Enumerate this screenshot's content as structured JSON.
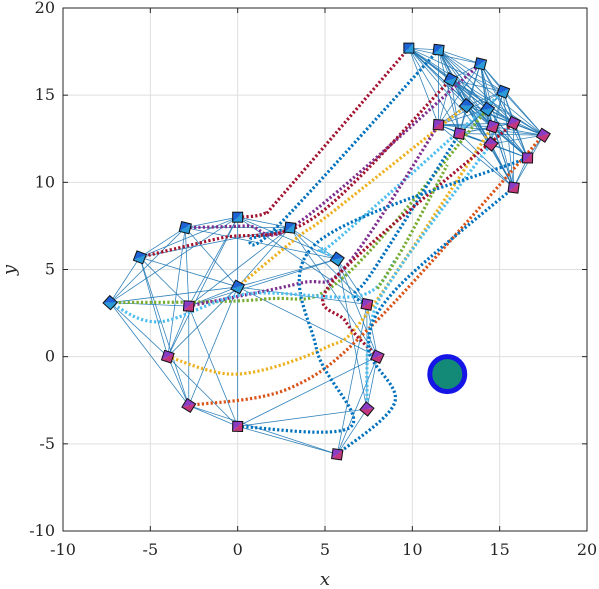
{
  "chart_data": {
    "type": "line",
    "xlabel": "x",
    "ylabel": "y",
    "xlim": [
      -10,
      20
    ],
    "ylim": [
      -10,
      20
    ],
    "xticks": [
      -10,
      -5,
      0,
      5,
      10,
      15,
      20
    ],
    "yticks": [
      -10,
      -5,
      0,
      5,
      10,
      15,
      20
    ],
    "grid": true,
    "obstacle": {
      "center": [
        12,
        -1
      ],
      "radius": 1.0,
      "fill": "#138a78",
      "edge": "#1515e6"
    },
    "start_formation": [
      [
        0,
        8
      ],
      [
        3,
        7.4
      ],
      [
        -3,
        7.4
      ],
      [
        -5.6,
        5.7
      ],
      [
        0,
        4
      ],
      [
        5.7,
        5.6
      ],
      [
        -7.3,
        3.1
      ],
      [
        -2.8,
        2.9
      ],
      [
        7.4,
        3
      ],
      [
        -4,
        0
      ],
      [
        8,
        0
      ],
      [
        -2.8,
        -2.8
      ],
      [
        7.4,
        -3
      ],
      [
        0,
        -4
      ],
      [
        5.7,
        -5.6
      ]
    ],
    "goal_formation": [
      [
        9.8,
        17.7
      ],
      [
        11.5,
        17.6
      ],
      [
        13.9,
        16.8
      ],
      [
        15.2,
        15.2
      ],
      [
        12.2,
        15.9
      ],
      [
        14.3,
        14.2
      ],
      [
        13.1,
        14.4
      ],
      [
        11.5,
        13.3
      ],
      [
        12.7,
        12.8
      ],
      [
        14.6,
        13.2
      ],
      [
        15.8,
        13.4
      ],
      [
        17.5,
        12.7
      ],
      [
        14.5,
        12.2
      ],
      [
        16.6,
        11.4
      ],
      [
        15.8,
        9.7
      ]
    ],
    "series": [
      {
        "color": "#a2142f",
        "points": [
          [
            0,
            8
          ],
          [
            1.5,
            8.2
          ],
          [
            2.5,
            9.2
          ],
          [
            9.8,
            17.7
          ]
        ]
      },
      {
        "color": "#0072bd",
        "points": [
          [
            3,
            7.4
          ],
          [
            0.8,
            6.8
          ],
          [
            2.2,
            7.4
          ],
          [
            11.5,
            17.6
          ]
        ]
      },
      {
        "color": "#7e2f8e",
        "points": [
          [
            -3,
            7.4
          ],
          [
            0.5,
            7.5
          ],
          [
            3.5,
            7.7
          ],
          [
            13.9,
            16.8
          ]
        ]
      },
      {
        "color": "#a2142f",
        "points": [
          [
            -5.6,
            5.7
          ],
          [
            -1,
            6.8
          ],
          [
            4.4,
            8.0
          ],
          [
            12.2,
            15.9
          ]
        ]
      },
      {
        "color": "#edb120",
        "points": [
          [
            0,
            4
          ],
          [
            3.5,
            6.9
          ],
          [
            5.3,
            8.2
          ],
          [
            13.1,
            14.4
          ]
        ]
      },
      {
        "color": "#4dbeee",
        "points": [
          [
            5.7,
            5.6
          ],
          [
            4.8,
            6.2
          ],
          [
            5.8,
            6.8
          ],
          [
            15.2,
            15.2
          ]
        ]
      },
      {
        "color": "#77ac30",
        "points": [
          [
            -7.3,
            3.1
          ],
          [
            1.5,
            3.3
          ],
          [
            6.0,
            4.5
          ],
          [
            14.3,
            14.2
          ]
        ]
      },
      {
        "color": "#7e2f8e",
        "points": [
          [
            -2.8,
            2.9
          ],
          [
            3.5,
            4.2
          ],
          [
            6.2,
            5.2
          ],
          [
            11.5,
            13.3
          ]
        ]
      },
      {
        "color": "#0072bd",
        "points": [
          [
            7.4,
            3
          ],
          [
            6.7,
            3.6
          ],
          [
            7.8,
            5.0
          ],
          [
            12.7,
            12.8
          ]
        ]
      },
      {
        "color": "#edb120",
        "points": [
          [
            -4,
            0
          ],
          [
            0,
            -1
          ],
          [
            5.0,
            0.5
          ],
          [
            7.5,
            2.6
          ],
          [
            14.6,
            13.2
          ]
        ]
      },
      {
        "color": "#a2142f",
        "points": [
          [
            8,
            0
          ],
          [
            6.2,
            2.0
          ],
          [
            5.5,
            4.4
          ],
          [
            15.8,
            13.4
          ]
        ]
      },
      {
        "color": "#d95319",
        "points": [
          [
            -2.8,
            -2.8
          ],
          [
            3,
            -1.8
          ],
          [
            7.9,
            2.0
          ],
          [
            17.5,
            12.7
          ]
        ]
      },
      {
        "color": "#4dbeee",
        "points": [
          [
            7.4,
            -3
          ],
          [
            7.6,
            1.8
          ],
          [
            9.2,
            5.0
          ],
          [
            14.5,
            12.2
          ]
        ]
      },
      {
        "color": "#0072bd",
        "points": [
          [
            0,
            -4
          ],
          [
            6.5,
            -4.0
          ],
          [
            4.5,
            0.5
          ],
          [
            4.5,
            6.5
          ],
          [
            16.6,
            11.4
          ]
        ]
      },
      {
        "color": "#0072bd",
        "points": [
          [
            5.7,
            -5.6
          ],
          [
            9.0,
            -2.6
          ],
          [
            7.5,
            0.5
          ],
          [
            9.0,
            3.8
          ],
          [
            15.8,
            9.7
          ]
        ]
      },
      {
        "color": "#4dbeee",
        "points": [
          [
            -7.3,
            3.1
          ],
          [
            -4.5,
            2.0
          ],
          [
            0.5,
            3.6
          ],
          [
            7.0,
            3.5
          ],
          [
            9.0,
            5.5
          ]
        ]
      },
      {
        "color": "#77ac30",
        "points": [
          [
            8.0,
            3.9
          ],
          [
            9.5,
            6.3
          ],
          [
            12.0,
            11.0
          ]
        ]
      }
    ]
  },
  "style": {
    "grid_color": "#dfdfdf",
    "axis_color": "#262626",
    "network_color": "#1f77b4",
    "marker_fill_start": "#1d63d6",
    "marker_fill_goal": "#c2377e"
  }
}
